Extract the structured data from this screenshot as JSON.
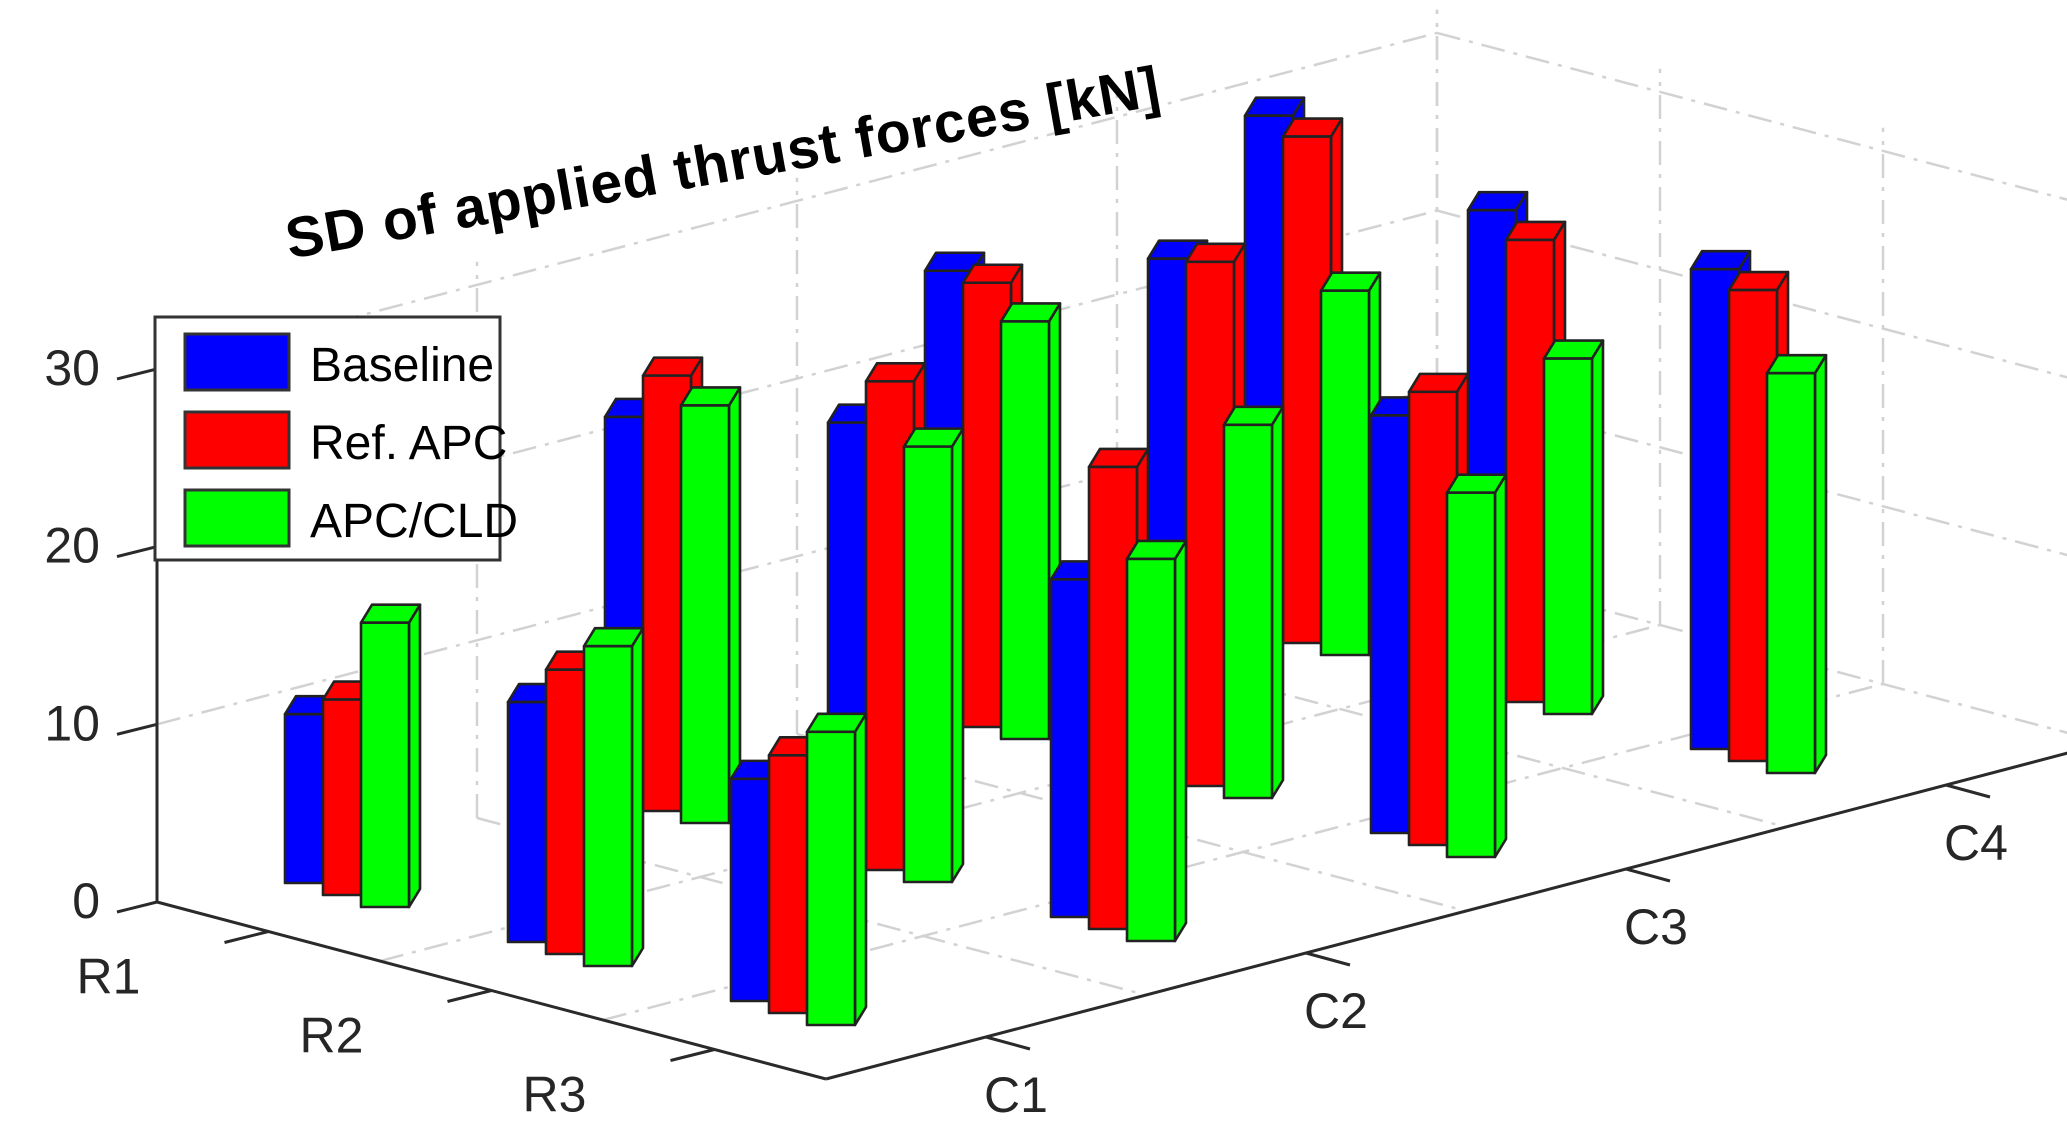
{
  "title": "SD of applied thrust forces [kN]",
  "legend": {
    "items": [
      {
        "label": "Baseline",
        "color": "#0000ff"
      },
      {
        "label": "Ref. APC",
        "color": "#ff0000"
      },
      {
        "label": "APC/CLD",
        "color": "#00ff00"
      }
    ]
  },
  "chart_data": {
    "type": "bar",
    "variant": "bar3d-grouped",
    "title": "SD of applied thrust forces [kN]",
    "categories": [
      "C1",
      "C2",
      "C3",
      "C4"
    ],
    "rows": [
      "R1",
      "R2",
      "R3"
    ],
    "zticks": [
      0,
      10,
      20,
      30
    ],
    "zlim": [
      0,
      31
    ],
    "grid": "dash-dot",
    "legend_position": "top-left",
    "series": [
      {
        "name": "Baseline",
        "color": "#0000ff",
        "values": {
          "R1": [
            9.5,
            21.5,
            25,
            29
          ],
          "R2": [
            13.5,
            24.5,
            29,
            27
          ],
          "R3": [
            12.5,
            19,
            23.5,
            27
          ]
        }
      },
      {
        "name": "Ref. APC",
        "color": "#ff0000",
        "values": {
          "R1": [
            11,
            24.5,
            25,
            28.5
          ],
          "R2": [
            16,
            27.5,
            29.5,
            26
          ],
          "R3": [
            14.5,
            26,
            25.5,
            26.5
          ]
        }
      },
      {
        "name": "APC/CLD",
        "color": "#00ff00",
        "values": {
          "R1": [
            16,
            23.5,
            23.5,
            20.5
          ],
          "R2": [
            18,
            24.5,
            21,
            20
          ],
          "R3": [
            16.5,
            21.5,
            20.5,
            22.5
          ]
        }
      }
    ]
  }
}
